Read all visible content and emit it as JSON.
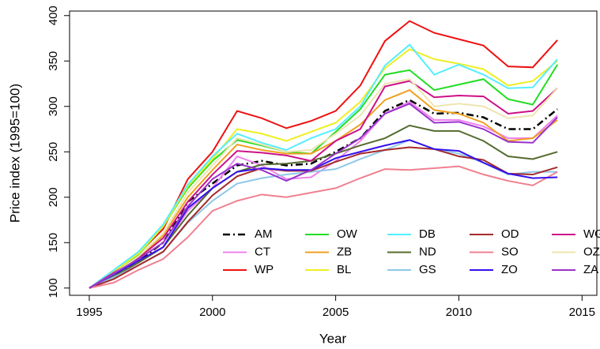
{
  "chart_data": {
    "type": "line",
    "x_label": "Year",
    "y_label": "Price index (1995=100)",
    "x": [
      1995,
      1996,
      1997,
      1998,
      1999,
      2000,
      2001,
      2002,
      2003,
      2004,
      2005,
      2006,
      2007,
      2008,
      2009,
      2010,
      2011,
      2012,
      2013,
      2014
    ],
    "xlim": [
      1994.2,
      2015.6
    ],
    "ylim": [
      92,
      405
    ],
    "xticks": [
      1995,
      2000,
      2005,
      2010,
      2015
    ],
    "yticks": [
      100,
      150,
      200,
      250,
      300,
      350,
      400
    ],
    "series": [
      {
        "name": "AM",
        "color": "#000000",
        "linestyle": "dashdot",
        "values": [
          100,
          115,
          130,
          150,
          195,
          215,
          235,
          240,
          235,
          237,
          250,
          265,
          295,
          307,
          292,
          293,
          288,
          275,
          275,
          297
        ]
      },
      {
        "name": "CT",
        "color": "#ee82ee",
        "values": [
          100,
          112,
          128,
          145,
          185,
          210,
          245,
          235,
          220,
          222,
          240,
          262,
          292,
          305,
          285,
          285,
          278,
          265,
          265,
          290
        ]
      },
      {
        "name": "WP",
        "color": "#ee1111",
        "values": [
          100,
          118,
          138,
          165,
          220,
          250,
          295,
          287,
          276,
          284,
          295,
          323,
          372,
          394,
          381,
          374,
          367,
          344,
          343,
          373
        ]
      },
      {
        "name": "OW",
        "color": "#22dd22",
        "values": [
          100,
          118,
          137,
          168,
          210,
          240,
          263,
          257,
          250,
          248,
          272,
          297,
          335,
          340,
          318,
          324,
          330,
          308,
          302,
          346
        ]
      },
      {
        "name": "ZB",
        "color": "#f0a020",
        "values": [
          100,
          115,
          133,
          158,
          200,
          230,
          258,
          252,
          248,
          248,
          262,
          280,
          307,
          318,
          296,
          292,
          282,
          262,
          265,
          285
        ]
      },
      {
        "name": "BL",
        "color": "#eeee22",
        "values": [
          100,
          118,
          138,
          168,
          212,
          242,
          275,
          270,
          262,
          272,
          282,
          305,
          342,
          363,
          352,
          347,
          341,
          323,
          328,
          350
        ]
      },
      {
        "name": "DB",
        "color": "#55eeff",
        "values": [
          100,
          120,
          140,
          170,
          214,
          245,
          270,
          260,
          252,
          265,
          275,
          300,
          345,
          368,
          335,
          346,
          335,
          320,
          321,
          352
        ]
      },
      {
        "name": "ND",
        "color": "#556b2f",
        "values": [
          100,
          113,
          128,
          145,
          180,
          210,
          228,
          236,
          237,
          240,
          248,
          257,
          265,
          279,
          273,
          273,
          262,
          245,
          242,
          250
        ]
      },
      {
        "name": "GS",
        "color": "#8ec8e8",
        "values": [
          100,
          112,
          125,
          140,
          172,
          196,
          215,
          221,
          225,
          228,
          231,
          242,
          252,
          263,
          253,
          248,
          238,
          225,
          228,
          228
        ]
      },
      {
        "name": "OD",
        "color": "#a52a2a",
        "values": [
          100,
          110,
          125,
          140,
          173,
          202,
          223,
          232,
          229,
          229,
          239,
          248,
          252,
          255,
          253,
          245,
          241,
          226,
          225,
          233
        ]
      },
      {
        "name": "SO",
        "color": "#f08090",
        "values": [
          100,
          106,
          120,
          132,
          156,
          185,
          196,
          203,
          200,
          205,
          210,
          221,
          231,
          230,
          232,
          234,
          225,
          218,
          213,
          228
        ]
      },
      {
        "name": "ZO",
        "color": "#3311ee",
        "values": [
          100,
          115,
          130,
          145,
          188,
          210,
          228,
          232,
          230,
          230,
          243,
          250,
          257,
          263,
          253,
          251,
          238,
          226,
          221,
          222
        ]
      },
      {
        "name": "WG",
        "color": "#cc1188",
        "values": [
          100,
          117,
          133,
          155,
          195,
          225,
          251,
          249,
          246,
          240,
          262,
          275,
          322,
          328,
          310,
          312,
          311,
          292,
          295,
          320
        ]
      },
      {
        "name": "OZ",
        "color": "#eee4b0",
        "values": [
          100,
          116,
          135,
          160,
          205,
          235,
          265,
          258,
          250,
          252,
          270,
          290,
          325,
          330,
          300,
          303,
          300,
          287,
          290,
          320
        ]
      },
      {
        "name": "ZA",
        "color": "#9932cc",
        "values": [
          100,
          116,
          132,
          150,
          190,
          220,
          237,
          230,
          218,
          230,
          248,
          265,
          292,
          303,
          282,
          283,
          275,
          261,
          260,
          288
        ]
      }
    ]
  }
}
